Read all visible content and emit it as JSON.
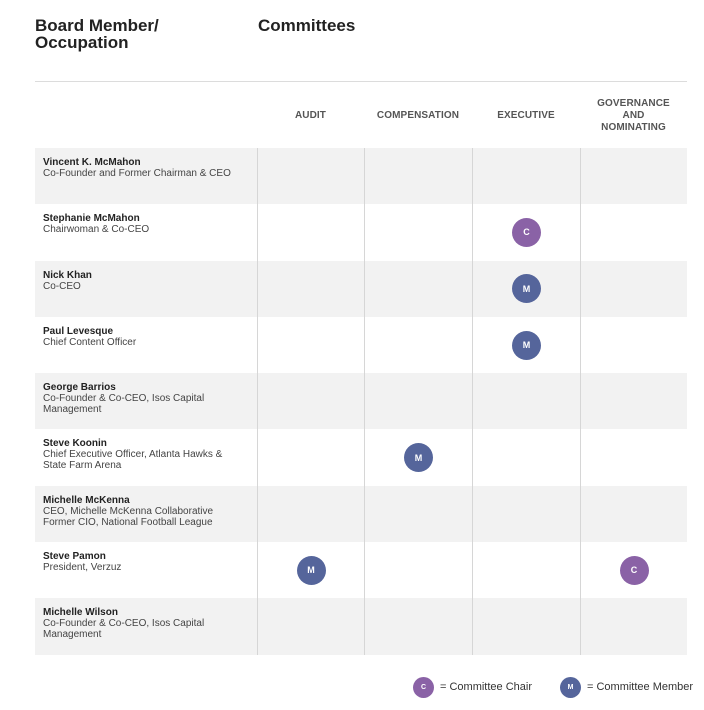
{
  "header": {
    "left_line1": "Board Member/",
    "left_line2": "Occupation",
    "right": "Committees"
  },
  "columns": [
    {
      "lines": [
        "AUDIT"
      ]
    },
    {
      "lines": [
        "COMPENSATION"
      ]
    },
    {
      "lines": [
        "EXECUTIVE"
      ]
    },
    {
      "lines": [
        "GOVERNANCE",
        "AND",
        "NOMINATING"
      ]
    }
  ],
  "badge_labels": {
    "chair": "C",
    "member": "M"
  },
  "members": [
    {
      "name": "Vincent K. McMahon",
      "occupation": "Co-Founder and Former Chairman & CEO",
      "roles": [
        "",
        "",
        "",
        ""
      ]
    },
    {
      "name": "Stephanie McMahon",
      "occupation": "Chairwoman & Co-CEO",
      "roles": [
        "",
        "",
        "chair",
        ""
      ]
    },
    {
      "name": "Nick Khan",
      "occupation": "Co-CEO",
      "roles": [
        "",
        "",
        "member",
        ""
      ]
    },
    {
      "name": "Paul Levesque",
      "occupation": "Chief Content Officer",
      "roles": [
        "",
        "",
        "member",
        ""
      ]
    },
    {
      "name": "George Barrios",
      "occupation": "Co-Founder & Co-CEO, Isos Capital\nManagement",
      "roles": [
        "",
        "",
        "",
        ""
      ]
    },
    {
      "name": "Steve Koonin",
      "occupation": "Chief Executive Officer, Atlanta Hawks &\nState Farm Arena",
      "roles": [
        "",
        "member",
        "",
        ""
      ]
    },
    {
      "name": "Michelle McKenna",
      "occupation": "CEO, Michelle McKenna Collaborative\nFormer CIO, National Football League",
      "roles": [
        "",
        "",
        "",
        ""
      ]
    },
    {
      "name": "Steve Pamon",
      "occupation": "President, Verzuz",
      "roles": [
        "member",
        "",
        "",
        "chair"
      ]
    },
    {
      "name": "Michelle Wilson",
      "occupation": "Co-Founder & Co-CEO, Isos Capital\nManagement",
      "roles": [
        "",
        "",
        "",
        ""
      ]
    }
  ],
  "legend": {
    "chair_label": "= Committee Chair",
    "member_label": "= Committee Member"
  },
  "colors": {
    "chair": "#8a62a6",
    "member": "#55659b",
    "row_shade": "#f2f2f2"
  }
}
